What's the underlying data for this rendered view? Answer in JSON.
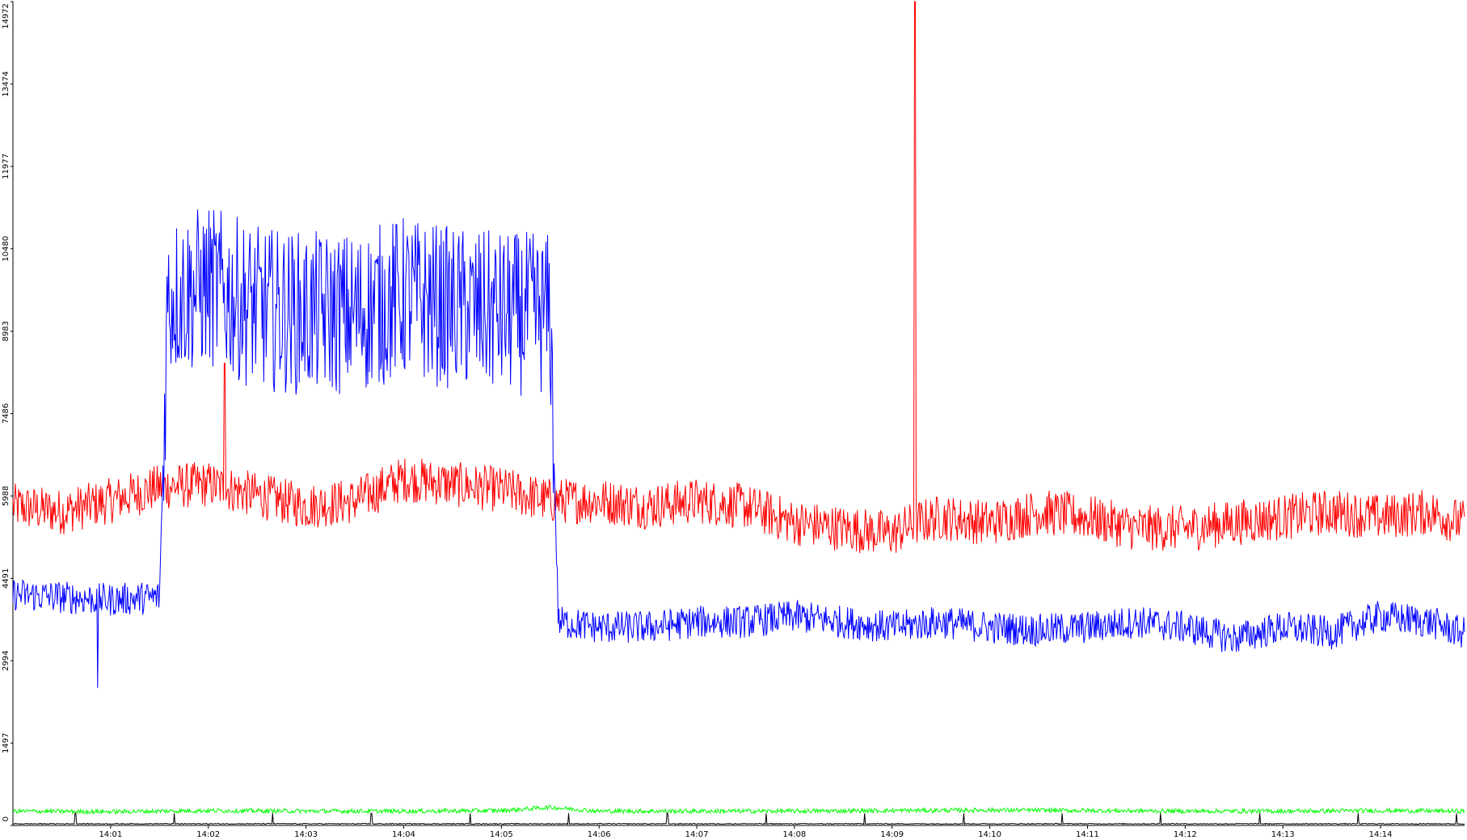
{
  "chart_data": {
    "type": "line",
    "title": "",
    "xlabel": "",
    "ylabel": "",
    "ylim": [
      0,
      14972
    ],
    "xlim_minutes": [
      0.0,
      14.86
    ],
    "y_ticks": [
      0,
      1497,
      2994,
      4491,
      5988,
      7486,
      8983,
      10480,
      11977,
      13474,
      14972
    ],
    "y_tick_labels": [
      "0",
      "1497",
      "2994",
      "4491",
      "5988",
      "7486",
      "8983",
      "10480",
      "11977",
      "13474",
      "14972"
    ],
    "x_ticks": [
      "14:01",
      "14:02",
      "14:03",
      "14:04",
      "14:05",
      "14:06",
      "14:07",
      "14:08",
      "14:09",
      "14:10",
      "14:11",
      "14:12",
      "14:13",
      "14:14"
    ],
    "grid": false,
    "legend": "none",
    "series": [
      {
        "color": "#ff0000",
        "x": [
          "14:00:00",
          "14:00:30",
          "14:01:00",
          "14:01:30",
          "14:02:00",
          "14:02:30",
          "14:03:00",
          "14:03:30",
          "14:04:00",
          "14:04:30",
          "14:05:00",
          "14:05:30",
          "14:06:00",
          "14:06:30",
          "14:07:00",
          "14:07:30",
          "14:08:00",
          "14:08:30",
          "14:09:00",
          "14:09:15",
          "14:09:30",
          "14:10:00",
          "14:10:30",
          "14:11:00",
          "14:11:30",
          "14:12:00",
          "14:12:30",
          "14:13:00",
          "14:13:30",
          "14:14:00",
          "14:14:30",
          "14:14:50"
        ],
        "y": [
          5800,
          5700,
          5900,
          6150,
          6200,
          6000,
          5800,
          5900,
          6300,
          6200,
          6100,
          5900,
          5900,
          5800,
          5900,
          5800,
          5500,
          5400,
          5300,
          5500,
          5600,
          5500,
          5700,
          5600,
          5400,
          5400,
          5500,
          5600,
          5700,
          5600,
          5700,
          5500
        ],
        "spikes": [
          {
            "x": "14:09:14",
            "y": 14972
          },
          {
            "x": "14:02:10",
            "y": 8400
          }
        ]
      },
      {
        "color": "#0000ff",
        "x": [
          "14:00:00",
          "14:00:30",
          "14:01:00",
          "14:01:30",
          "14:01:35",
          "14:02:00",
          "14:02:30",
          "14:03:00",
          "14:03:30",
          "14:04:00",
          "14:04:30",
          "14:05:00",
          "14:05:30",
          "14:05:35",
          "14:06:00",
          "14:06:30",
          "14:07:00",
          "14:07:30",
          "14:08:00",
          "14:08:30",
          "14:09:00",
          "14:09:30",
          "14:10:00",
          "14:10:30",
          "14:11:00",
          "14:11:30",
          "14:12:00",
          "14:12:30",
          "14:13:00",
          "14:13:30",
          "14:14:00",
          "14:14:30",
          "14:14:50"
        ],
        "y": [
          4200,
          4150,
          4100,
          4150,
          9600,
          9800,
          9400,
          9300,
          9300,
          9600,
          9400,
          9300,
          9300,
          3700,
          3600,
          3600,
          3700,
          3700,
          3800,
          3700,
          3600,
          3700,
          3600,
          3550,
          3600,
          3700,
          3600,
          3400,
          3600,
          3500,
          3800,
          3700,
          3500
        ],
        "spikes": [
          {
            "x": "14:00:52",
            "y": 2500
          }
        ]
      },
      {
        "color": "#00ff00",
        "x": [
          "14:00:00",
          "14:01:00",
          "14:02:00",
          "14:03:00",
          "14:04:00",
          "14:05:00",
          "14:05:30",
          "14:06:00",
          "14:07:00",
          "14:08:00",
          "14:09:00",
          "14:10:00",
          "14:11:00",
          "14:12:00",
          "14:13:00",
          "14:14:00",
          "14:14:50"
        ],
        "y": [
          260,
          250,
          270,
          260,
          260,
          270,
          330,
          260,
          260,
          260,
          270,
          280,
          270,
          260,
          260,
          270,
          260
        ]
      },
      {
        "color": "#000000",
        "x": [
          "14:00:00",
          "14:14:50"
        ],
        "y": [
          30,
          30
        ],
        "periodic_spikes_minutes": [
          0.64,
          1.65,
          2.66,
          3.67,
          4.68,
          5.69,
          6.7,
          7.71,
          8.72,
          9.73,
          10.74,
          11.75,
          12.76,
          13.77,
          14.78
        ],
        "spike_height": 220
      }
    ]
  }
}
